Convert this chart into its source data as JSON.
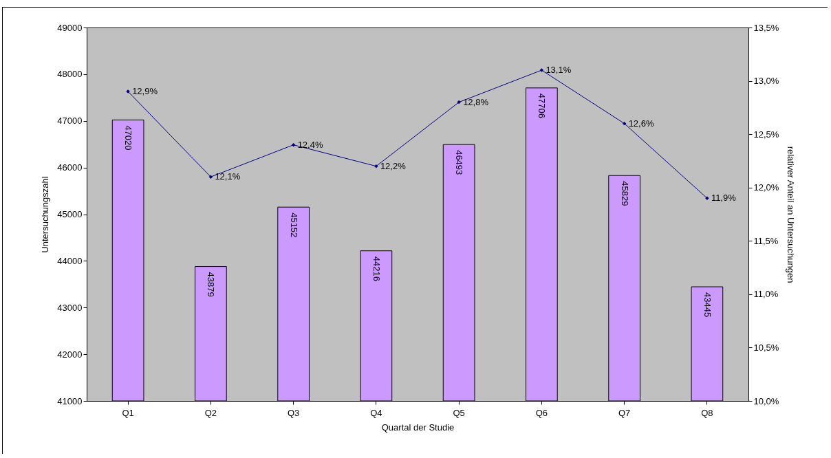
{
  "chart_data": {
    "type": "bar",
    "xlabel": "Quartal der Studie",
    "ylabel": "Untersuchungszahl",
    "y2label": "relativer Anteil an Untersuchungen",
    "categories": [
      "Q1",
      "Q2",
      "Q3",
      "Q4",
      "Q5",
      "Q6",
      "Q7",
      "Q8"
    ],
    "series": [
      {
        "color": "#cc99ff",
        "values": [
          47020,
          43879,
          45152,
          44216,
          46493,
          47706,
          45829,
          43445
        ],
        "value_labels": [
          "47020",
          "43879",
          "45152",
          "44216",
          "46493",
          "47706",
          "45829",
          "43445"
        ]
      },
      {
        "type": "line",
        "axis": "y2",
        "color": "#000080",
        "marker": "diamond",
        "values": [
          12.9,
          12.1,
          12.4,
          12.2,
          12.8,
          13.1,
          12.6,
          11.9
        ],
        "value_labels": [
          "12,9%",
          "12,1%",
          "12,4%",
          "12,2%",
          "12,8%",
          "13,1%",
          "12,6%",
          "11,9%"
        ]
      }
    ],
    "ylim": [
      41000,
      49000
    ],
    "yticks": [
      41000,
      42000,
      43000,
      44000,
      45000,
      46000,
      47000,
      48000,
      49000
    ],
    "y2lim": [
      10,
      13.5
    ],
    "y2ticks": [
      {
        "value": 10,
        "label": "10,0%"
      },
      {
        "value": 10.5,
        "label": "10,5%"
      },
      {
        "value": 11,
        "label": "11,0%"
      },
      {
        "value": 11.5,
        "label": "11,5%"
      },
      {
        "value": 12,
        "label": "12,0%"
      },
      {
        "value": 12.5,
        "label": "12,5%"
      },
      {
        "value": 13,
        "label": "13,0%"
      },
      {
        "value": 13.5,
        "label": "13,5%"
      }
    ],
    "grid": false
  }
}
